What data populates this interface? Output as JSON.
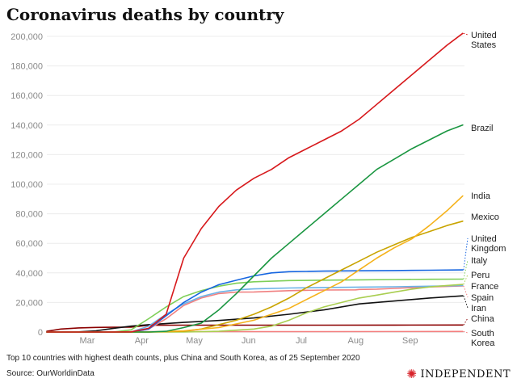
{
  "header": {
    "title": "Coronavirus deaths by country"
  },
  "footer": {
    "note": "Top 10 countries with highest death counts, plus China and South Korea, as of 25 September 2020",
    "source": "Source: OurWorldinData"
  },
  "brand": {
    "name": "INDEPENDENT",
    "icon": "eagle-icon",
    "color": "#d8232a"
  },
  "chart_data": {
    "type": "line",
    "title": "Coronavirus deaths by country",
    "xlabel": "",
    "ylabel": "",
    "x_ticks": [
      "Mar",
      "Apr",
      "May",
      "Jun",
      "Jul",
      "Aug",
      "Sep"
    ],
    "x_tick_positions": [
      45,
      76,
      106,
      137,
      167,
      198,
      229
    ],
    "xlim": [
      22,
      260
    ],
    "ylim": [
      0,
      200000
    ],
    "y_ticks": [
      0,
      20000,
      40000,
      60000,
      80000,
      100000,
      120000,
      140000,
      160000,
      180000,
      200000
    ],
    "y_tick_labels": [
      "0",
      "20,000",
      "40,000",
      "60,000",
      "80,000",
      "100,000",
      "120,000",
      "140,000",
      "160,000",
      "180,000",
      "200,000"
    ],
    "grid": true,
    "legend": "direct labels at line ends",
    "series": [
      {
        "name": "United States",
        "label_lines": [
          "United",
          "States"
        ],
        "color": "#d7191c",
        "x": [
          22,
          60,
          70,
          80,
          90,
          100,
          110,
          120,
          130,
          140,
          150,
          160,
          170,
          180,
          190,
          200,
          210,
          220,
          230,
          240,
          250,
          259
        ],
        "y": [
          0,
          0,
          100,
          2500,
          12000,
          50000,
          70000,
          85000,
          96000,
          104000,
          110000,
          118000,
          124000,
          130000,
          136000,
          144000,
          154000,
          164000,
          174000,
          184000,
          194000,
          202000
        ]
      },
      {
        "name": "Brazil",
        "label_lines": [
          "Brazil"
        ],
        "color": "#1a9641",
        "x": [
          22,
          80,
          90,
          100,
          110,
          120,
          130,
          140,
          150,
          160,
          170,
          180,
          190,
          200,
          210,
          220,
          230,
          240,
          250,
          259
        ],
        "y": [
          0,
          0,
          500,
          3000,
          6000,
          15000,
          26000,
          38000,
          50000,
          60000,
          70000,
          80000,
          90000,
          100000,
          110000,
          117000,
          124000,
          130000,
          136000,
          140000
        ]
      },
      {
        "name": "India",
        "label_lines": [
          "India"
        ],
        "color": "#f5b21b",
        "x": [
          22,
          80,
          100,
          120,
          140,
          150,
          160,
          170,
          180,
          190,
          200,
          210,
          220,
          230,
          240,
          250,
          259
        ],
        "y": [
          0,
          0,
          800,
          3000,
          8000,
          12000,
          16000,
          22000,
          28000,
          34000,
          42000,
          50000,
          57000,
          63000,
          72000,
          82000,
          92000
        ]
      },
      {
        "name": "Mexico",
        "label_lines": [
          "Mexico"
        ],
        "color": "#c9a400",
        "x": [
          22,
          80,
          100,
          110,
          120,
          130,
          140,
          150,
          160,
          170,
          180,
          190,
          200,
          210,
          220,
          230,
          240,
          250,
          259
        ],
        "y": [
          0,
          0,
          500,
          2000,
          5000,
          8000,
          12000,
          17000,
          23000,
          30000,
          36000,
          42000,
          48000,
          54000,
          59000,
          64000,
          68000,
          72000,
          75000
        ]
      },
      {
        "name": "United Kingdom",
        "label_lines": [
          "United",
          "Kingdom"
        ],
        "color": "#1565e0",
        "x": [
          22,
          70,
          80,
          90,
          100,
          110,
          120,
          130,
          140,
          150,
          160,
          170,
          180,
          200,
          220,
          240,
          259
        ],
        "y": [
          0,
          0,
          2000,
          11000,
          20000,
          27000,
          32000,
          35000,
          38000,
          40000,
          40800,
          41000,
          41200,
          41400,
          41600,
          41800,
          42000
        ]
      },
      {
        "name": "Italy",
        "label_lines": [
          "Italy"
        ],
        "color": "#7ecf57",
        "x": [
          22,
          60,
          70,
          80,
          90,
          100,
          110,
          120,
          130,
          140,
          160,
          180,
          200,
          220,
          240,
          259
        ],
        "y": [
          0,
          0,
          1500,
          9000,
          17000,
          24000,
          28000,
          31000,
          33000,
          34000,
          34800,
          35100,
          35300,
          35500,
          35700,
          35800
        ]
      },
      {
        "name": "Peru",
        "label_lines": [
          "Peru"
        ],
        "color": "#a9ce50",
        "x": [
          22,
          100,
          120,
          140,
          150,
          160,
          170,
          180,
          190,
          200,
          210,
          220,
          230,
          240,
          250,
          259
        ],
        "y": [
          0,
          0,
          500,
          2000,
          4000,
          8000,
          13000,
          17000,
          20000,
          23000,
          25000,
          27000,
          29000,
          30500,
          31500,
          32200
        ]
      },
      {
        "name": "France",
        "label_lines": [
          "France"
        ],
        "color": "#6cb2e6",
        "x": [
          22,
          70,
          80,
          90,
          100,
          110,
          120,
          130,
          140,
          160,
          180,
          200,
          220,
          240,
          259
        ],
        "y": [
          0,
          0,
          4000,
          12000,
          19000,
          24000,
          27000,
          28500,
          29200,
          29800,
          30100,
          30400,
          30600,
          31000,
          31400
        ]
      },
      {
        "name": "Spain",
        "label_lines": [
          "Spain"
        ],
        "color": "#f08080",
        "x": [
          22,
          70,
          80,
          90,
          100,
          110,
          120,
          130,
          140,
          160,
          180,
          198,
          200,
          210,
          220,
          240,
          259
        ],
        "y": [
          0,
          0,
          2000,
          9000,
          18000,
          23000,
          26000,
          27000,
          27100,
          28000,
          28400,
          28500,
          28800,
          29000,
          29500,
          30500,
          31200
        ]
      },
      {
        "name": "Iran",
        "label_lines": [
          "Iran"
        ],
        "color": "#111111",
        "x": [
          22,
          40,
          50,
          60,
          70,
          80,
          100,
          120,
          140,
          160,
          180,
          200,
          220,
          240,
          259
        ],
        "y": [
          0,
          100,
          800,
          2500,
          4000,
          5000,
          6500,
          7800,
          9500,
          12000,
          15000,
          19000,
          21000,
          23000,
          24500
        ]
      },
      {
        "name": "China",
        "label_lines": [
          "China"
        ],
        "color": "#8b0000",
        "x": [
          22,
          30,
          40,
          50,
          60,
          70,
          80,
          100,
          140,
          180,
          220,
          259
        ],
        "y": [
          500,
          2000,
          2800,
          3100,
          3200,
          3300,
          4600,
          4630,
          4640,
          4660,
          4700,
          4740
        ]
      },
      {
        "name": "South Korea",
        "label_lines": [
          "South",
          "Korea"
        ],
        "color": "#f47e7e",
        "x": [
          22,
          40,
          50,
          60,
          80,
          120,
          180,
          259
        ],
        "y": [
          0,
          10,
          60,
          150,
          250,
          270,
          300,
          400
        ]
      }
    ]
  }
}
